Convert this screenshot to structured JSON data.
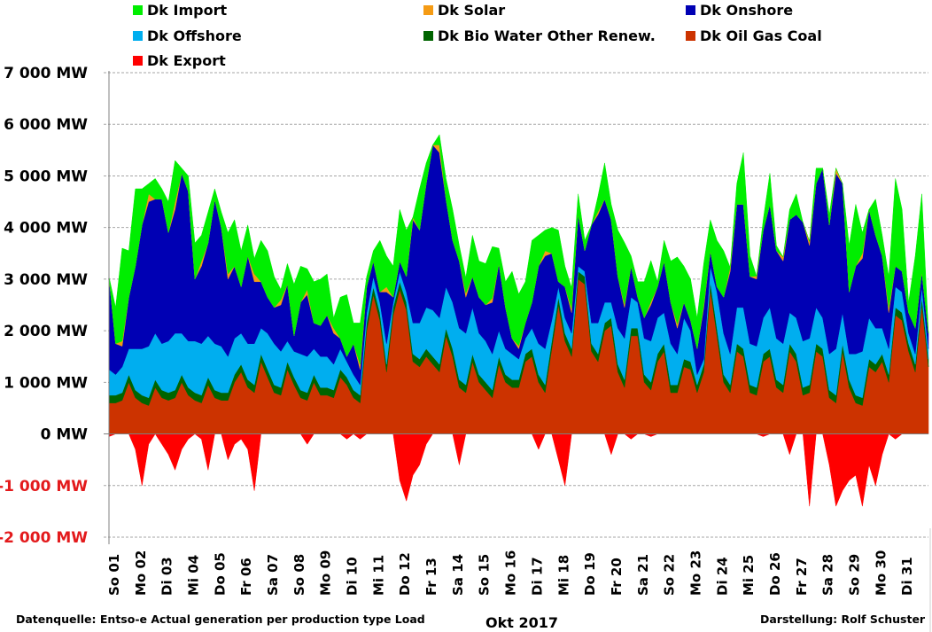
{
  "chart_data": {
    "type": "area",
    "stacked": true,
    "title": "",
    "xlabel": "Okt 2017",
    "ylabel": "",
    "ylim": [
      -2000,
      7000
    ],
    "y_ticks": [
      7000,
      6000,
      5000,
      4000,
      3000,
      2000,
      1000,
      0,
      -1000,
      -2000
    ],
    "y_tick_labels": [
      "7 000 MW",
      "6 000 MW",
      "5 000 MW",
      "4 000 MW",
      "3 000 MW",
      "2 000 MW",
      "1 000 MW",
      "0 MW",
      "-1 000 MW",
      "-2 000 MW"
    ],
    "y_tick_colors": {
      "positive": "#000000",
      "negative": "#e31a1c"
    },
    "grid": true,
    "legend_position": "top",
    "x_unit": "day-of-month (6-hour samples)",
    "x_range": [
      1,
      32
    ],
    "x_tick_labels": [
      "So 01",
      "Mo 02",
      "Di 03",
      "Mi 04",
      "Do 05",
      "Fr 06",
      "Sa 07",
      "So 08",
      "Mo 09",
      "Di 10",
      "Mi 11",
      "Do 12",
      "Fr 13",
      "Sa 14",
      "So 15",
      "Mo 16",
      "Di 17",
      "Mi 18",
      "Do 19",
      "Fr 20",
      "Sa 21",
      "So 22",
      "Mo 23",
      "Di 24",
      "Mi 25",
      "Do 26",
      "Fr 27",
      "Sa 28",
      "So 29",
      "Mo 30",
      "Di 31"
    ],
    "legend": [
      {
        "name": "Dk Import",
        "color": "#00ee00"
      },
      {
        "name": "Dk Solar",
        "color": "#f59b14"
      },
      {
        "name": "Dk Onshore",
        "color": "#0000b4"
      },
      {
        "name": "Dk Offshore",
        "color": "#00aeef"
      },
      {
        "name": "Dk Bio Water Other Renew.",
        "color": "#006400"
      },
      {
        "name": "Dk Oil Gas Coal",
        "color": "#cc3300"
      },
      {
        "name": "Dk Export",
        "color": "#ff0000"
      }
    ],
    "stack_order": [
      "Dk Oil Gas Coal",
      "Dk Bio Water Other Renew.",
      "Dk Offshore",
      "Dk Onshore",
      "Dk Solar",
      "Dk Import"
    ],
    "series": [
      {
        "name": "Dk Oil Gas Coal",
        "color": "#cc3300",
        "values": [
          600,
          600,
          650,
          1000,
          700,
          600,
          550,
          900,
          700,
          650,
          700,
          1000,
          750,
          650,
          600,
          950,
          700,
          650,
          650,
          1000,
          1200,
          900,
          800,
          1400,
          1100,
          800,
          750,
          1250,
          950,
          700,
          650,
          1000,
          750,
          750,
          700,
          1100,
          950,
          700,
          600,
          2000,
          2700,
          2200,
          1200,
          2300,
          2800,
          2400,
          1400,
          1300,
          1500,
          1350,
          1200,
          1900,
          1500,
          900,
          800,
          1400,
          1000,
          850,
          700,
          1350,
          1000,
          900,
          900,
          1400,
          1500,
          1000,
          800,
          1650,
          2500,
          1800,
          1500,
          3000,
          2900,
          1600,
          1400,
          2000,
          2100,
          1200,
          900,
          1900,
          1900,
          1000,
          850,
          1400,
          1600,
          800,
          800,
          1300,
          1250,
          800,
          1200,
          2800,
          1900,
          1000,
          800,
          1600,
          1500,
          800,
          750,
          1400,
          1500,
          900,
          800,
          1600,
          1400,
          750,
          800,
          1600,
          1500,
          700,
          600,
          1600,
          900,
          600,
          550,
          1300,
          1200,
          1400,
          1000,
          2300,
          2200,
          1600,
          1200,
          2500,
          1300
        ]
      },
      {
        "name": "Dk Bio Water Other Renew.",
        "color": "#006400",
        "values": [
          150,
          150,
          150,
          150,
          150,
          150,
          150,
          150,
          150,
          150,
          150,
          150,
          150,
          150,
          150,
          150,
          150,
          150,
          150,
          150,
          150,
          150,
          150,
          150,
          150,
          150,
          150,
          150,
          150,
          150,
          150,
          150,
          150,
          150,
          150,
          150,
          150,
          150,
          150,
          150,
          150,
          150,
          150,
          150,
          150,
          150,
          150,
          150,
          150,
          150,
          150,
          150,
          150,
          150,
          150,
          150,
          150,
          150,
          150,
          150,
          150,
          150,
          150,
          150,
          150,
          150,
          150,
          150,
          150,
          150,
          150,
          150,
          150,
          150,
          150,
          150,
          150,
          150,
          150,
          150,
          150,
          150,
          150,
          150,
          150,
          150,
          150,
          150,
          150,
          150,
          150,
          150,
          150,
          150,
          150,
          150,
          150,
          150,
          150,
          150,
          150,
          150,
          150,
          150,
          150,
          150,
          150,
          150,
          150,
          150,
          150,
          150,
          150,
          150,
          150,
          150,
          150,
          150,
          150,
          150,
          150,
          150,
          150,
          150,
          150
        ]
      },
      {
        "name": "Dk Offshore",
        "color": "#00aeef",
        "values": [
          500,
          400,
          500,
          500,
          800,
          900,
          1000,
          900,
          900,
          1000,
          1100,
          800,
          900,
          1000,
          1000,
          800,
          900,
          900,
          700,
          700,
          600,
          700,
          800,
          500,
          700,
          800,
          700,
          400,
          500,
          700,
          700,
          500,
          600,
          600,
          500,
          400,
          300,
          300,
          200,
          200,
          200,
          200,
          400,
          100,
          200,
          200,
          600,
          700,
          800,
          900,
          900,
          800,
          900,
          1000,
          1000,
          900,
          800,
          800,
          700,
          500,
          500,
          500,
          400,
          300,
          400,
          600,
          700,
          400,
          200,
          300,
          300,
          100,
          100,
          400,
          600,
          400,
          300,
          700,
          800,
          600,
          500,
          700,
          800,
          700,
          600,
          800,
          600,
          800,
          600,
          200,
          100,
          300,
          700,
          800,
          600,
          700,
          800,
          800,
          800,
          700,
          800,
          800,
          800,
          600,
          700,
          900,
          900,
          700,
          600,
          700,
          900,
          600,
          500,
          800,
          900,
          800,
          700,
          500,
          500,
          400,
          400,
          200,
          200,
          200,
          200
        ]
      },
      {
        "name": "Dk Onshore",
        "color": "#0000b4",
        "values": [
          1800,
          600,
          400,
          1000,
          1600,
          2400,
          2800,
          2600,
          2800,
          2100,
          2400,
          3100,
          2900,
          1200,
          1500,
          1800,
          2800,
          2300,
          1500,
          1400,
          900,
          1700,
          1200,
          900,
          700,
          700,
          900,
          1100,
          300,
          1000,
          1200,
          500,
          600,
          800,
          600,
          200,
          100,
          600,
          300,
          500,
          300,
          200,
          1000,
          100,
          200,
          300,
          2000,
          1800,
          2400,
          3200,
          3200,
          1700,
          1200,
          1300,
          700,
          600,
          700,
          700,
          1000,
          1300,
          800,
          300,
          200,
          300,
          500,
          1500,
          1800,
          1300,
          100,
          600,
          400,
          1000,
          400,
          1900,
          2100,
          2000,
          1600,
          1000,
          600,
          600,
          100,
          400,
          700,
          600,
          1000,
          800,
          500,
          300,
          200,
          500,
          1000,
          300,
          100,
          700,
          1600,
          2000,
          2000,
          1300,
          1300,
          1700,
          2000,
          1700,
          1600,
          1800,
          2000,
          2300,
          1800,
          2400,
          2900,
          2500,
          3400,
          2500,
          1200,
          1700,
          1800,
          2100,
          1800,
          1400,
          700,
          400,
          400,
          400,
          500,
          300,
          300,
          800,
          400
        ]
      },
      {
        "name": "Dk Solar",
        "color": "#f59b14",
        "values": [
          0,
          0,
          100,
          0,
          0,
          0,
          150,
          0,
          0,
          0,
          150,
          0,
          0,
          0,
          100,
          0,
          0,
          0,
          100,
          0,
          0,
          0,
          150,
          0,
          0,
          0,
          100,
          0,
          0,
          0,
          100,
          0,
          0,
          0,
          100,
          0,
          0,
          0,
          100,
          0,
          0,
          0,
          100,
          0,
          0,
          0,
          50,
          0,
          0,
          0,
          150,
          0,
          0,
          0,
          80,
          0,
          0,
          0,
          80,
          0,
          0,
          0,
          60,
          0,
          0,
          0,
          100,
          0,
          0,
          0,
          80,
          0,
          0,
          0,
          60,
          0,
          0,
          0,
          60,
          0,
          0,
          0,
          60,
          0,
          0,
          0,
          80,
          0,
          0,
          0,
          60,
          0,
          0,
          0,
          80,
          0,
          0,
          0,
          60,
          0,
          0,
          0,
          80,
          0,
          0,
          0,
          80,
          0,
          0,
          0,
          100,
          0,
          0,
          0,
          100,
          0,
          0,
          0,
          100,
          0,
          0,
          0,
          0
        ]
      },
      {
        "name": "Dk Import",
        "color": "#00ee00",
        "values": [
          0,
          700,
          1800,
          900,
          1500,
          700,
          200,
          400,
          200,
          600,
          800,
          100,
          300,
          700,
          500,
          600,
          200,
          300,
          800,
          900,
          700,
          600,
          300,
          800,
          900,
          600,
          200,
          400,
          1000,
          700,
          400,
          800,
          900,
          800,
          200,
          800,
          1200,
          400,
          800,
          200,
          200,
          1000,
          600,
          600,
          1000,
          900,
          0,
          800,
          400,
          0,
          200,
          400,
          600,
          300,
          300,
          800,
          700,
          800,
          1000,
          300,
          500,
          1300,
          1000,
          800,
          1200,
          600,
          400,
          500,
          1000,
          400,
          400,
          400,
          200,
          0,
          300,
          700,
          300,
          900,
          1200,
          200,
          300,
          700,
          800,
          100,
          400,
          800,
          1300,
          700,
          800,
          600,
          800,
          600,
          900,
          900,
          0,
          400,
          1000,
          400,
          0,
          200,
          600,
          100,
          0,
          200,
          400,
          0,
          0,
          300,
          0,
          200,
          0,
          0,
          900,
          1200,
          400,
          0,
          700,
          400,
          600,
          1700,
          1200,
          200,
          1400,
          1500,
          0
        ]
      },
      {
        "name": "Dk Export",
        "color": "#ff0000",
        "values": [
          -50,
          0,
          0,
          0,
          -300,
          -1000,
          -200,
          0,
          -200,
          -400,
          -700,
          -300,
          -100,
          0,
          -100,
          -700,
          0,
          0,
          -500,
          -200,
          -100,
          -300,
          -1100,
          0,
          0,
          0,
          0,
          0,
          0,
          0,
          -200,
          0,
          0,
          0,
          0,
          0,
          -100,
          0,
          -100,
          0,
          0,
          0,
          0,
          0,
          -900,
          -1300,
          -800,
          -600,
          -200,
          0,
          0,
          0,
          0,
          -600,
          0,
          0,
          0,
          0,
          0,
          0,
          0,
          0,
          0,
          0,
          0,
          -300,
          0,
          0,
          -500,
          -1000,
          0,
          0,
          0,
          0,
          0,
          0,
          -400,
          0,
          0,
          -100,
          0,
          0,
          -50,
          0,
          0,
          0,
          0,
          0,
          0,
          0,
          0,
          0,
          0,
          0,
          0,
          0,
          0,
          0,
          0,
          -50,
          0,
          0,
          0,
          -400,
          0,
          0,
          -1400,
          0,
          0,
          -600,
          -1400,
          -1100,
          -900,
          -800,
          -1400,
          -600,
          -1000,
          -400,
          0,
          -100,
          0,
          0,
          0,
          0,
          0,
          0,
          0,
          0
        ]
      }
    ]
  },
  "footer": {
    "source": "Datenquelle: Entso-e  Actual generation per production type    Load",
    "month": "Okt 2017",
    "credit": "Darstellung: Rolf Schuster"
  }
}
